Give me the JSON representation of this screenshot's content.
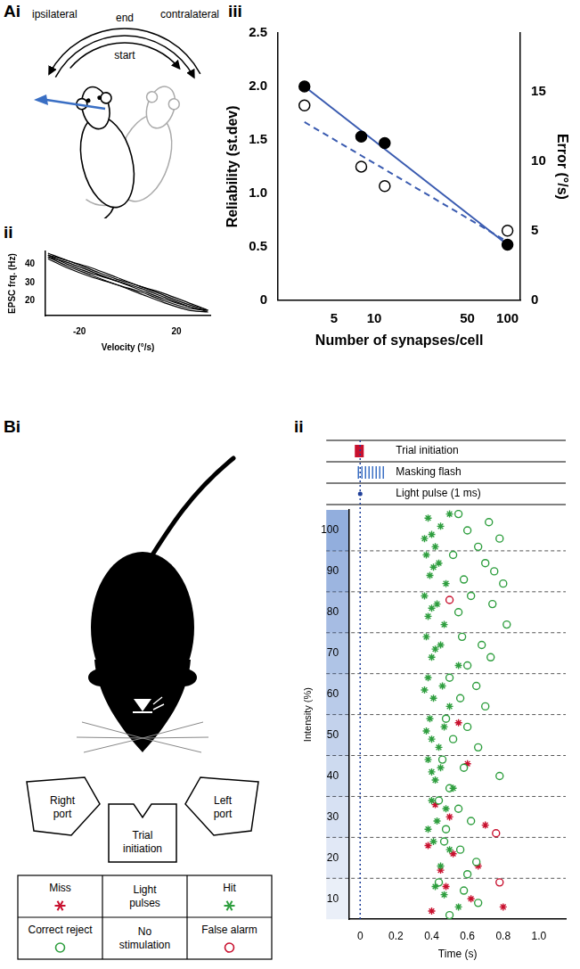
{
  "diagrams": {
    "Ai": {
      "panel": "Ai",
      "arc_labels": {
        "left": "ipsilateral",
        "top": "end",
        "right": "contralateral",
        "inner": "start"
      }
    },
    "Bi": {
      "panel": "Bi",
      "ports": [
        "Right port",
        "Trial initiation",
        "Left port"
      ],
      "table": {
        "rows": [
          [
            {
              "label": "Miss",
              "marker": "star",
              "color": "#c8102e"
            },
            {
              "label": "Light pulses"
            },
            {
              "label": "Hit",
              "marker": "star",
              "color": "#2e9e3e"
            }
          ],
          [
            {
              "label": "Correct reject",
              "marker": "open_circle",
              "color": "#2e9e3e"
            },
            {
              "label": "No stimulation"
            },
            {
              "label": "False alarm",
              "marker": "open_circle",
              "color": "#c8102e"
            }
          ]
        ]
      }
    }
  },
  "chart_data": [
    {
      "panel": "ii",
      "type": "line",
      "x_label": "Velocity (°/s)",
      "y_label": "EPSC frq. (Hz)",
      "xlim": [
        -34,
        34
      ],
      "xticks": [
        -20,
        20
      ],
      "ylim": [
        12,
        47
      ],
      "yticks": [
        20,
        30,
        40
      ],
      "grid": false,
      "series": [
        {
          "color": "#000000",
          "x": [
            -33,
            -25,
            -15,
            -5,
            5,
            15,
            25,
            33,
            25,
            15,
            5,
            -5,
            -15,
            -25,
            -33
          ],
          "values": [
            45,
            42,
            37,
            32,
            28,
            23,
            18,
            15,
            16,
            20,
            25,
            29,
            34,
            39,
            44
          ]
        },
        {
          "color": "#000000",
          "x": [
            -33,
            -25,
            -15,
            -5,
            5,
            15,
            25,
            33,
            25,
            15,
            5,
            -5,
            -15,
            -25,
            -33
          ],
          "values": [
            44,
            41,
            36,
            31,
            27,
            22,
            17,
            14,
            15,
            19,
            24,
            29,
            33,
            38,
            43
          ]
        },
        {
          "color": "#000000",
          "x": [
            -33,
            -25,
            -15,
            -5,
            5,
            15,
            25,
            33,
            25,
            15,
            5,
            -5,
            -15,
            -25,
            -33
          ],
          "values": [
            46,
            42,
            38,
            33,
            28,
            24,
            19,
            15,
            17,
            21,
            26,
            31,
            35,
            40,
            45
          ]
        }
      ]
    },
    {
      "panel": "iii",
      "type": "scatter",
      "log": "x",
      "x_label": "Number of synapses/cell",
      "y_label": "Reliability (st.dev)",
      "y2_label": "Error (°/s)",
      "xlim": [
        1.9,
        125
      ],
      "xticks": [
        5,
        10,
        50,
        100
      ],
      "ylim": [
        0,
        2.5
      ],
      "yticks": [
        0,
        0.5,
        {
          "value": 1,
          "label": "1.0"
        },
        1.5,
        {
          "value": 2,
          "label": "2.0"
        },
        2.5
      ],
      "y2lim": [
        0,
        19.2
      ],
      "y2ticks": [
        0,
        5,
        10,
        15
      ],
      "grid": false,
      "series": [
        {
          "type": "scatter",
          "marker": "circle",
          "color": "#000000",
          "x": [
            3,
            8,
            12,
            100
          ],
          "values": [
            2.0,
            1.53,
            1.47,
            0.52
          ]
        },
        {
          "type": "scatter",
          "marker": "open_circle",
          "color": "#000000",
          "axis": "y2",
          "x": [
            3,
            8,
            12,
            100
          ],
          "values": [
            14,
            9.6,
            8.2,
            5.0
          ]
        },
        {
          "type": "line",
          "line_style": "solid",
          "color": "#3a5bb0",
          "x": [
            3,
            100
          ],
          "values": [
            2.0,
            0.52
          ]
        },
        {
          "type": "line",
          "line_style": "dashed",
          "color": "#3a5bb0",
          "axis": "y2",
          "x": [
            3,
            100
          ],
          "values": [
            12.8,
            4.2
          ]
        }
      ]
    },
    {
      "panel": "ii",
      "type": "scatter",
      "x_label": "Time (s)",
      "y_label": "Intensity (%)",
      "xlim": [
        -0.06,
        1.15
      ],
      "xticks": [
        0,
        0.2,
        0.4,
        0.6,
        0.8,
        {
          "value": 1,
          "label": "1.0"
        }
      ],
      "ylim": [
        5,
        105
      ],
      "yticks": [
        10,
        20,
        30,
        40,
        50,
        60,
        70,
        80,
        90,
        100
      ],
      "grid": false,
      "events": [
        {
          "label": "Trial initiation",
          "marker": "bar",
          "color": "#c8102e",
          "start": -0.03,
          "end": 0.02
        },
        {
          "label": "Masking flash",
          "marker": "stripes",
          "color": "#3a6fc4",
          "start": -0.01,
          "end": 0.13
        },
        {
          "label": "Light pulse (1 ms)",
          "marker": "dot",
          "color": "#1f3f99",
          "start": 0,
          "end": 0.001
        }
      ],
      "series": [
        {
          "marker": "star",
          "color": "#2e9e3e",
          "x": [
            0.38,
            0.45,
            0.36,
            0.42,
            0.5,
            0.4,
            0.37,
            0.44,
            0.39,
            0.48,
            0.41,
            0.36,
            0.43,
            0.38,
            0.47,
            0.4,
            0.37,
            0.45,
            0.4,
            0.55,
            0.42,
            0.38,
            0.46,
            0.41,
            0.5,
            0.36,
            0.39,
            0.47,
            0.4,
            0.44,
            0.37,
            0.38,
            0.45,
            0.42,
            0.52,
            0.4,
            0.4,
            0.48,
            0.43,
            0.38,
            0.41,
            0.5,
            0.45,
            0.42,
            0.55,
            0.47
          ],
          "values": [
            103,
            101,
            98,
            96,
            104,
            99,
            94,
            92,
            89,
            87,
            91,
            84,
            82,
            79,
            77,
            81,
            74,
            72,
            69,
            67,
            71,
            64,
            62,
            59,
            57,
            61,
            54,
            52,
            49,
            47,
            51,
            44,
            42,
            39,
            37,
            41,
            34,
            32,
            29,
            27,
            24,
            22,
            18,
            13,
            8,
            11
          ]
        },
        {
          "marker": "open_circle",
          "color": "#2e9e3e",
          "x": [
            0.55,
            0.72,
            0.6,
            0.78,
            0.66,
            0.52,
            0.7,
            0.75,
            0.58,
            0.8,
            0.62,
            0.74,
            0.55,
            0.82,
            0.57,
            0.68,
            0.73,
            0.6,
            0.5,
            0.65,
            0.56,
            0.7,
            0.48,
            0.6,
            0.52,
            0.66,
            0.46,
            0.58,
            0.78,
            0.5,
            0.44,
            0.55,
            0.62,
            0.48,
            0.47,
            0.56,
            0.65,
            0.6,
            0.44,
            0.58,
            0.66,
            0.5
          ],
          "values": [
            104,
            102,
            100,
            98,
            96,
            94,
            92,
            90,
            88,
            87,
            84,
            82,
            80,
            77,
            74,
            72,
            69,
            67,
            64,
            62,
            59,
            57,
            54,
            52,
            49,
            47,
            44,
            42,
            40,
            37,
            34,
            32,
            29,
            27,
            24,
            22,
            19,
            16,
            14,
            12,
            9,
            6
          ]
        },
        {
          "marker": "star",
          "color": "#c8102e",
          "x": [
            0.55,
            0.6,
            0.42,
            0.5,
            0.7,
            0.38,
            0.52,
            0.66,
            0.45,
            0.48,
            0.62,
            0.8,
            0.4
          ],
          "values": [
            53,
            43,
            33,
            30,
            28,
            23,
            21,
            18,
            17,
            13,
            10,
            8,
            7
          ]
        },
        {
          "marker": "open_circle",
          "color": "#c8102e",
          "x": [
            0.5,
            0.76,
            0.78
          ],
          "values": [
            83,
            26,
            14
          ]
        }
      ]
    }
  ]
}
